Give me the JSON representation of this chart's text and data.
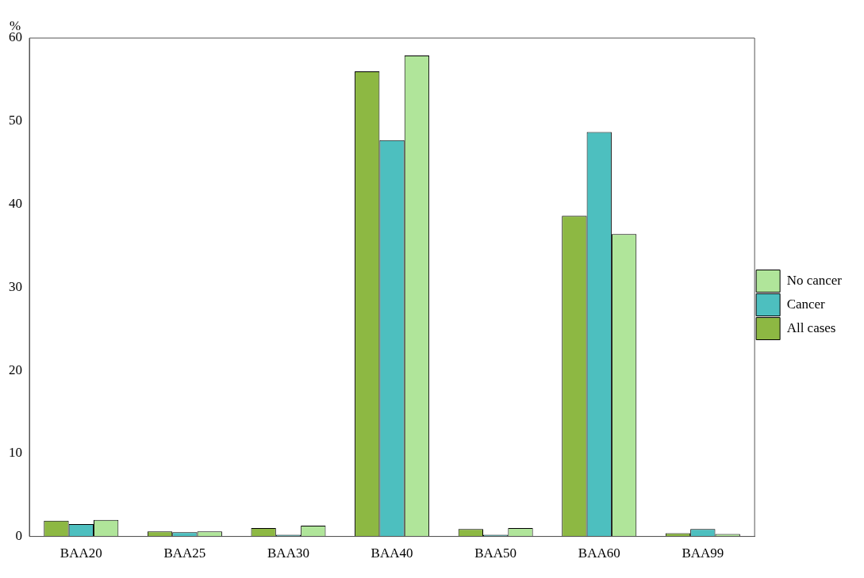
{
  "chart_data": {
    "type": "bar",
    "ylabel": "%",
    "categories": [
      "BAA20",
      "BAA25",
      "BAA30",
      "BAA40",
      "BAA50",
      "BAA60",
      "BAA99"
    ],
    "series": [
      {
        "name": "All cases",
        "color": "#8db843",
        "values": [
          1.9,
          0.6,
          1.0,
          56.0,
          0.9,
          38.6,
          0.4
        ]
      },
      {
        "name": "Cancer",
        "color": "#4dbfbf",
        "values": [
          1.5,
          0.5,
          0.2,
          47.7,
          0.2,
          48.7,
          0.9
        ]
      },
      {
        "name": "No cancer",
        "color": "#b0e59a",
        "values": [
          2.0,
          0.6,
          1.3,
          57.9,
          1.0,
          36.4,
          0.3
        ]
      }
    ],
    "ylim": [
      0,
      60
    ],
    "yticks": [
      0,
      10,
      20,
      30,
      40,
      50,
      60
    ],
    "grid": false,
    "legend": "right"
  }
}
